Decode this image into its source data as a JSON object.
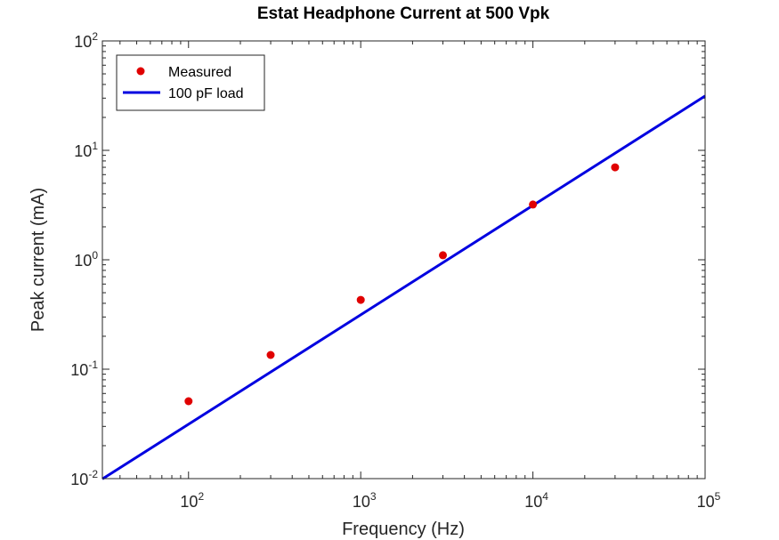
{
  "chart_data": {
    "type": "scatter",
    "title": "Estat Headphone Current at 500 Vpk",
    "xlabel": "Frequency (Hz)",
    "ylabel": "Peak current (mA)",
    "xscale": "log",
    "yscale": "log",
    "xlim": [
      31.6,
      100000
    ],
    "ylim": [
      0.01,
      100
    ],
    "x_ticks": [
      {
        "base": "10",
        "exp": "2",
        "value": 100
      },
      {
        "base": "10",
        "exp": "3",
        "value": 1000
      },
      {
        "base": "10",
        "exp": "4",
        "value": 10000
      },
      {
        "base": "10",
        "exp": "5",
        "value": 100000
      }
    ],
    "y_ticks": [
      {
        "base": "10",
        "exp": "-2",
        "value": 0.01
      },
      {
        "base": "10",
        "exp": "-1",
        "value": 0.1
      },
      {
        "base": "10",
        "exp": "0",
        "value": 1
      },
      {
        "base": "10",
        "exp": "1",
        "value": 10
      },
      {
        "base": "10",
        "exp": "2",
        "value": 100
      }
    ],
    "grid": false,
    "legend_position": "top-left",
    "series": [
      {
        "name": "Measured",
        "kind": "markers",
        "color": "#e00000",
        "x": [
          100,
          300,
          1000,
          3000,
          10000,
          30000
        ],
        "y": [
          0.051,
          0.135,
          0.43,
          1.1,
          3.2,
          7.0
        ]
      },
      {
        "name": "100 pF load",
        "kind": "line",
        "color": "#0000e0",
        "x": [
          31.6,
          100000
        ],
        "y": [
          0.00993,
          31.4
        ]
      }
    ]
  }
}
